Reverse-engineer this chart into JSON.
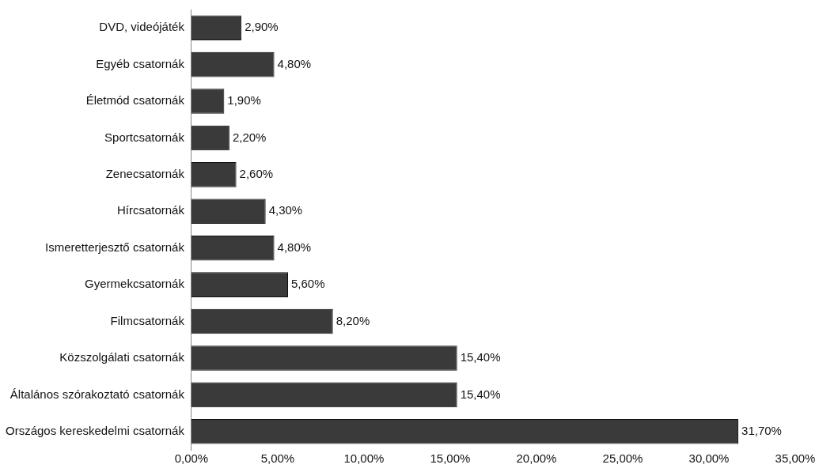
{
  "chart_data": {
    "type": "bar",
    "orientation": "horizontal",
    "categories": [
      "DVD, videójáték",
      "Egyéb csatornák",
      "Életmód csatornák",
      "Sportcsatornák",
      "Zenecsatornák",
      "Hírcsatornák",
      "Ismeretterjesztő csatornák",
      "Gyermekcsatornák",
      "Filmcsatornák",
      "Közszolgálati csatornák",
      "Általános szórakoztató csatornák",
      "Országos kereskedelmi csatornák"
    ],
    "values": [
      2.9,
      4.8,
      1.9,
      2.2,
      2.6,
      4.3,
      4.8,
      5.6,
      8.2,
      15.4,
      15.4,
      31.7
    ],
    "value_labels": [
      "2,90%",
      "4,80%",
      "1,90%",
      "2,20%",
      "2,60%",
      "4,30%",
      "4,80%",
      "5,60%",
      "8,20%",
      "15,40%",
      "15,40%",
      "31,70%"
    ],
    "color": "#3a3a3a",
    "xlim": [
      0,
      35
    ],
    "xticks": [
      {
        "value": 0,
        "label": "0,00%"
      },
      {
        "value": 5,
        "label": "5,00%"
      },
      {
        "value": 10,
        "label": "10,00%"
      },
      {
        "value": 15,
        "label": "15,00%"
      },
      {
        "value": 20,
        "label": "20,00%"
      },
      {
        "value": 25,
        "label": "25,00%"
      },
      {
        "value": 30,
        "label": "30,00%"
      },
      {
        "value": 35,
        "label": "35,00%"
      }
    ],
    "grid": false,
    "legend": false
  }
}
